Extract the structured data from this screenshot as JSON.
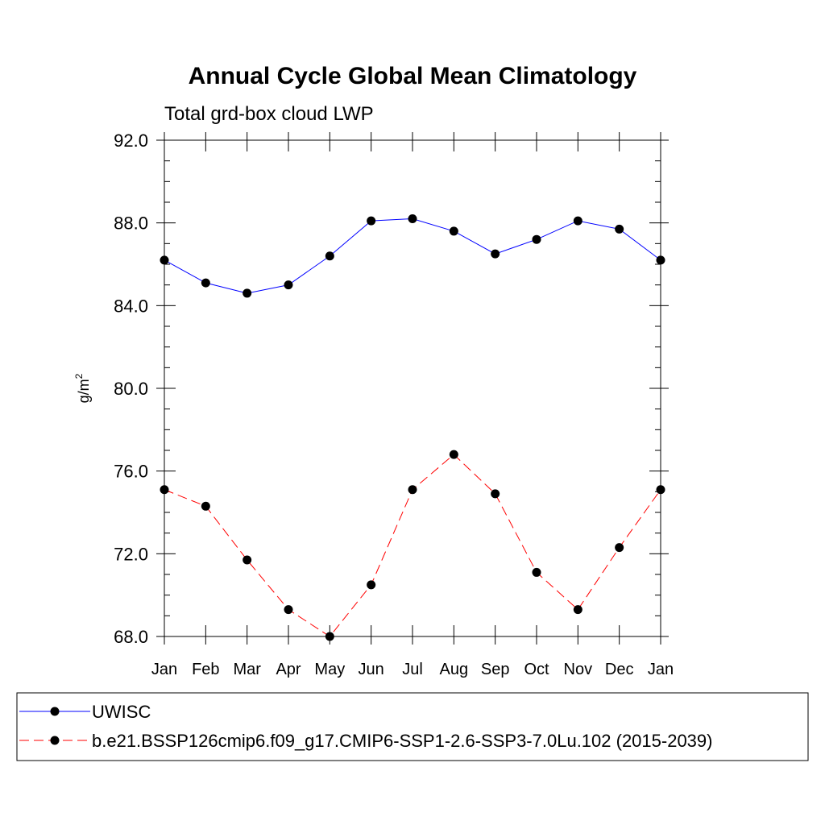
{
  "chart_data": {
    "type": "line",
    "title": "Annual Cycle Global Mean Climatology",
    "subtitle": "Total grd-box cloud LWP",
    "ylabel": "g/m",
    "ylabel_superscript": "2",
    "categories": [
      "Jan",
      "Feb",
      "Mar",
      "Apr",
      "May",
      "Jun",
      "Jul",
      "Aug",
      "Sep",
      "Oct",
      "Nov",
      "Dec",
      "Jan"
    ],
    "ylim": [
      68.0,
      92.0
    ],
    "yticks": [
      68.0,
      72.0,
      76.0,
      80.0,
      84.0,
      88.0,
      92.0
    ],
    "ytick_labels": [
      "68.0",
      "72.0",
      "76.0",
      "80.0",
      "84.0",
      "88.0",
      "92.0"
    ],
    "grid": false,
    "legend_position": "bottom",
    "series": [
      {
        "name": "UWISC",
        "color": "#0000ff",
        "dash": "solid",
        "values": [
          86.2,
          85.1,
          84.6,
          85.0,
          86.4,
          88.1,
          88.2,
          87.6,
          86.5,
          87.2,
          88.1,
          87.7,
          86.2
        ]
      },
      {
        "name": "b.e21.BSSP126cmip6.f09_g17.CMIP6-SSP1-2.6-SSP3-7.0Lu.102 (2015-2039)",
        "color": "#ff0000",
        "dash": "dashed",
        "values": [
          75.1,
          74.3,
          71.7,
          69.3,
          68.0,
          70.5,
          75.1,
          76.8,
          74.9,
          71.1,
          69.3,
          72.3,
          75.1
        ]
      }
    ]
  }
}
